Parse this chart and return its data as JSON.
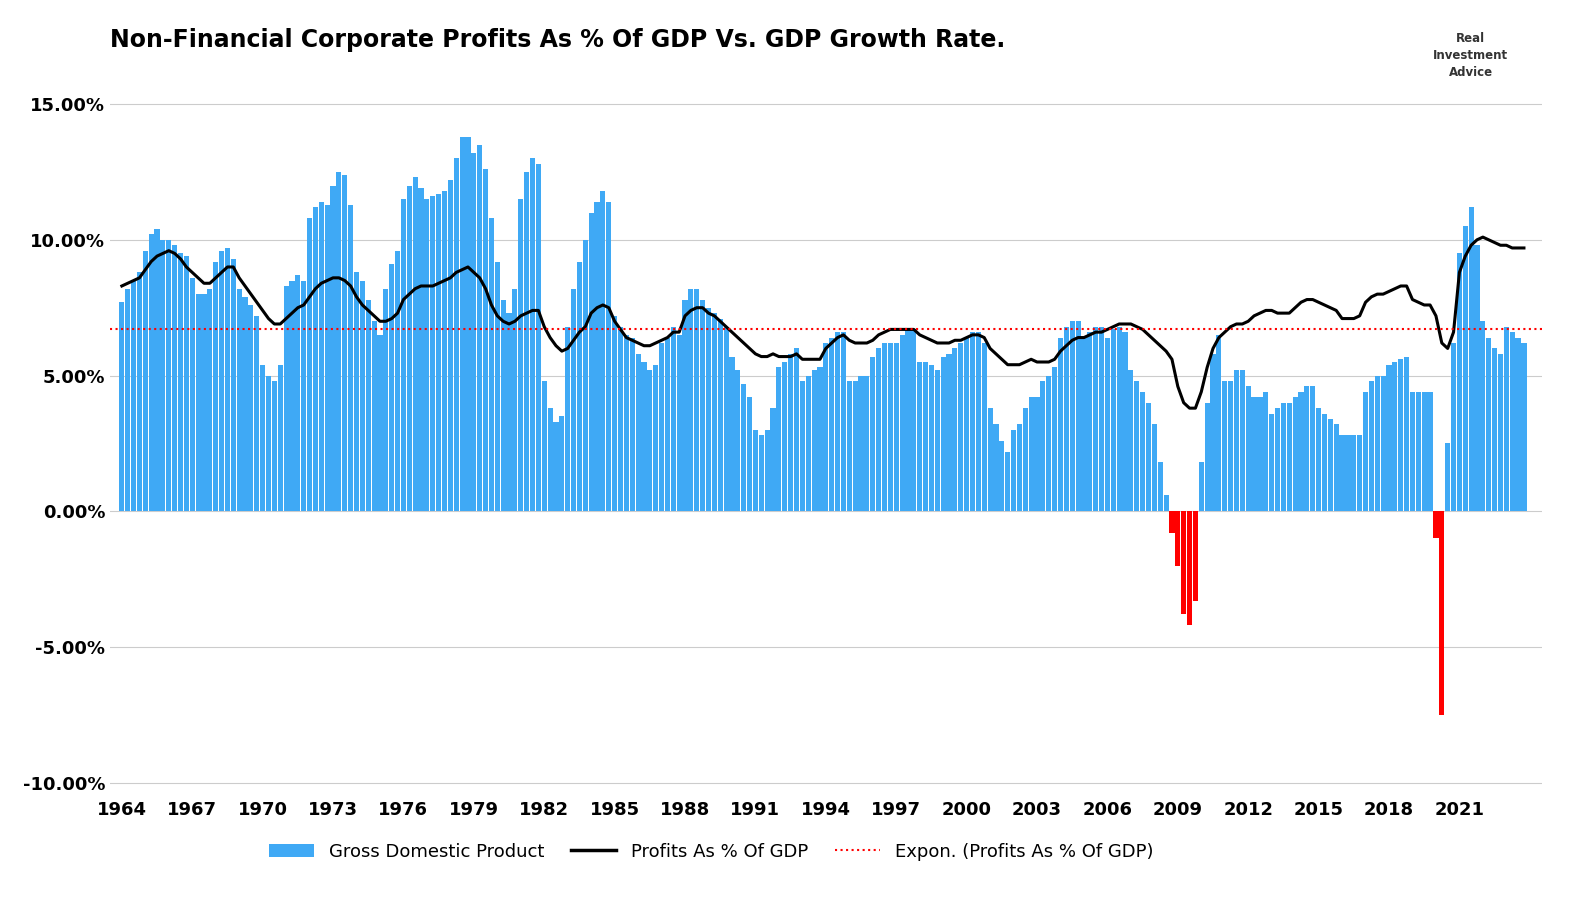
{
  "title": "Non-Financial Corporate Profits As % Of GDP Vs. GDP Growth Rate.",
  "background_color": "#ffffff",
  "title_fontsize": 17,
  "gdp_pos_color": "#3fa9f5",
  "gdp_neg_color": "#ff0000",
  "profits_color": "#000000",
  "expon_color": "#ff0000",
  "expon_value": 0.067,
  "ylim": [
    -0.105,
    0.165
  ],
  "yticks": [
    -0.1,
    -0.05,
    0.0,
    0.05,
    0.1,
    0.15
  ],
  "ytick_labels": [
    "-10.00%",
    "-5.00%",
    "0.00%",
    "5.00%",
    "10.00%",
    "15.00%"
  ],
  "xtick_years": [
    1964,
    1967,
    1970,
    1973,
    1976,
    1979,
    1982,
    1985,
    1988,
    1991,
    1994,
    1997,
    2000,
    2003,
    2006,
    2009,
    2012,
    2015,
    2018,
    2021
  ],
  "legend_labels": [
    "Gross Domestic Product",
    "Profits As % Of GDP",
    "Expon. (Profits As % Of GDP)"
  ],
  "quarters": [
    1964.0,
    1964.25,
    1964.5,
    1964.75,
    1965.0,
    1965.25,
    1965.5,
    1965.75,
    1966.0,
    1966.25,
    1966.5,
    1966.75,
    1967.0,
    1967.25,
    1967.5,
    1967.75,
    1968.0,
    1968.25,
    1968.5,
    1968.75,
    1969.0,
    1969.25,
    1969.5,
    1969.75,
    1970.0,
    1970.25,
    1970.5,
    1970.75,
    1971.0,
    1971.25,
    1971.5,
    1971.75,
    1972.0,
    1972.25,
    1972.5,
    1972.75,
    1973.0,
    1973.25,
    1973.5,
    1973.75,
    1974.0,
    1974.25,
    1974.5,
    1974.75,
    1975.0,
    1975.25,
    1975.5,
    1975.75,
    1976.0,
    1976.25,
    1976.5,
    1976.75,
    1977.0,
    1977.25,
    1977.5,
    1977.75,
    1978.0,
    1978.25,
    1978.5,
    1978.75,
    1979.0,
    1979.25,
    1979.5,
    1979.75,
    1980.0,
    1980.25,
    1980.5,
    1980.75,
    1981.0,
    1981.25,
    1981.5,
    1981.75,
    1982.0,
    1982.25,
    1982.5,
    1982.75,
    1983.0,
    1983.25,
    1983.5,
    1983.75,
    1984.0,
    1984.25,
    1984.5,
    1984.75,
    1985.0,
    1985.25,
    1985.5,
    1985.75,
    1986.0,
    1986.25,
    1986.5,
    1986.75,
    1987.0,
    1987.25,
    1987.5,
    1987.75,
    1988.0,
    1988.25,
    1988.5,
    1988.75,
    1989.0,
    1989.25,
    1989.5,
    1989.75,
    1990.0,
    1990.25,
    1990.5,
    1990.75,
    1991.0,
    1991.25,
    1991.5,
    1991.75,
    1992.0,
    1992.25,
    1992.5,
    1992.75,
    1993.0,
    1993.25,
    1993.5,
    1993.75,
    1994.0,
    1994.25,
    1994.5,
    1994.75,
    1995.0,
    1995.25,
    1995.5,
    1995.75,
    1996.0,
    1996.25,
    1996.5,
    1996.75,
    1997.0,
    1997.25,
    1997.5,
    1997.75,
    1998.0,
    1998.25,
    1998.5,
    1998.75,
    1999.0,
    1999.25,
    1999.5,
    1999.75,
    2000.0,
    2000.25,
    2000.5,
    2000.75,
    2001.0,
    2001.25,
    2001.5,
    2001.75,
    2002.0,
    2002.25,
    2002.5,
    2002.75,
    2003.0,
    2003.25,
    2003.5,
    2003.75,
    2004.0,
    2004.25,
    2004.5,
    2004.75,
    2005.0,
    2005.25,
    2005.5,
    2005.75,
    2006.0,
    2006.25,
    2006.5,
    2006.75,
    2007.0,
    2007.25,
    2007.5,
    2007.75,
    2008.0,
    2008.25,
    2008.5,
    2008.75,
    2009.0,
    2009.25,
    2009.5,
    2009.75,
    2010.0,
    2010.25,
    2010.5,
    2010.75,
    2011.0,
    2011.25,
    2011.5,
    2011.75,
    2012.0,
    2012.25,
    2012.5,
    2012.75,
    2013.0,
    2013.25,
    2013.5,
    2013.75,
    2014.0,
    2014.25,
    2014.5,
    2014.75,
    2015.0,
    2015.25,
    2015.5,
    2015.75,
    2016.0,
    2016.25,
    2016.5,
    2016.75,
    2017.0,
    2017.25,
    2017.5,
    2017.75,
    2018.0,
    2018.25,
    2018.5,
    2018.75,
    2019.0,
    2019.25,
    2019.5,
    2019.75,
    2020.0,
    2020.25,
    2020.5,
    2020.75,
    2021.0,
    2021.25,
    2021.5,
    2021.75,
    2022.0,
    2022.25,
    2022.5,
    2022.75,
    2023.0,
    2023.25,
    2023.5,
    2023.75
  ],
  "gdp_growth_q": [
    0.077,
    0.082,
    0.085,
    0.088,
    0.096,
    0.102,
    0.104,
    0.1,
    0.1,
    0.098,
    0.095,
    0.094,
    0.086,
    0.08,
    0.08,
    0.082,
    0.092,
    0.096,
    0.097,
    0.093,
    0.082,
    0.079,
    0.076,
    0.072,
    0.054,
    0.05,
    0.048,
    0.054,
    0.083,
    0.085,
    0.087,
    0.085,
    0.108,
    0.112,
    0.114,
    0.113,
    0.12,
    0.125,
    0.124,
    0.113,
    0.088,
    0.085,
    0.078,
    0.07,
    0.065,
    0.082,
    0.091,
    0.096,
    0.115,
    0.12,
    0.123,
    0.119,
    0.115,
    0.116,
    0.117,
    0.118,
    0.122,
    0.13,
    0.138,
    0.138,
    0.132,
    0.135,
    0.126,
    0.108,
    0.092,
    0.078,
    0.073,
    0.082,
    0.115,
    0.125,
    0.13,
    0.128,
    0.048,
    0.038,
    0.033,
    0.035,
    0.068,
    0.082,
    0.092,
    0.1,
    0.11,
    0.114,
    0.118,
    0.114,
    0.072,
    0.068,
    0.065,
    0.064,
    0.058,
    0.055,
    0.052,
    0.054,
    0.062,
    0.064,
    0.068,
    0.065,
    0.078,
    0.082,
    0.082,
    0.078,
    0.075,
    0.073,
    0.071,
    0.068,
    0.057,
    0.052,
    0.047,
    0.042,
    0.03,
    0.028,
    0.03,
    0.038,
    0.053,
    0.055,
    0.058,
    0.06,
    0.048,
    0.05,
    0.052,
    0.053,
    0.062,
    0.064,
    0.066,
    0.066,
    0.048,
    0.048,
    0.05,
    0.05,
    0.057,
    0.06,
    0.062,
    0.062,
    0.062,
    0.065,
    0.067,
    0.067,
    0.055,
    0.055,
    0.054,
    0.052,
    0.057,
    0.058,
    0.06,
    0.062,
    0.064,
    0.066,
    0.066,
    0.062,
    0.038,
    0.032,
    0.026,
    0.022,
    0.03,
    0.032,
    0.038,
    0.042,
    0.042,
    0.048,
    0.05,
    0.053,
    0.064,
    0.068,
    0.07,
    0.07,
    0.064,
    0.066,
    0.068,
    0.068,
    0.064,
    0.067,
    0.068,
    0.066,
    0.052,
    0.048,
    0.044,
    0.04,
    0.032,
    0.018,
    0.006,
    -0.008,
    -0.02,
    -0.038,
    -0.042,
    -0.033,
    0.018,
    0.04,
    0.058,
    0.065,
    0.048,
    0.048,
    0.052,
    0.052,
    0.046,
    0.042,
    0.042,
    0.044,
    0.036,
    0.038,
    0.04,
    0.04,
    0.042,
    0.044,
    0.046,
    0.046,
    0.038,
    0.036,
    0.034,
    0.032,
    0.028,
    0.028,
    0.028,
    0.028,
    0.044,
    0.048,
    0.05,
    0.05,
    0.054,
    0.055,
    0.056,
    0.057,
    0.044,
    0.044,
    0.044,
    0.044,
    -0.01,
    -0.075,
    0.025,
    0.062,
    0.095,
    0.105,
    0.112,
    0.098,
    0.07,
    0.064,
    0.06,
    0.058,
    0.068,
    0.066,
    0.064,
    0.062
  ],
  "profits_pct_q": [
    0.083,
    0.084,
    0.085,
    0.086,
    0.089,
    0.092,
    0.094,
    0.095,
    0.096,
    0.095,
    0.093,
    0.09,
    0.088,
    0.086,
    0.084,
    0.084,
    0.086,
    0.088,
    0.09,
    0.09,
    0.086,
    0.083,
    0.08,
    0.077,
    0.074,
    0.071,
    0.069,
    0.069,
    0.071,
    0.073,
    0.075,
    0.076,
    0.079,
    0.082,
    0.084,
    0.085,
    0.086,
    0.086,
    0.085,
    0.083,
    0.079,
    0.076,
    0.074,
    0.072,
    0.07,
    0.07,
    0.071,
    0.073,
    0.078,
    0.08,
    0.082,
    0.083,
    0.083,
    0.083,
    0.084,
    0.085,
    0.086,
    0.088,
    0.089,
    0.09,
    0.088,
    0.086,
    0.082,
    0.076,
    0.072,
    0.07,
    0.069,
    0.07,
    0.072,
    0.073,
    0.074,
    0.074,
    0.068,
    0.064,
    0.061,
    0.059,
    0.06,
    0.063,
    0.066,
    0.068,
    0.073,
    0.075,
    0.076,
    0.075,
    0.07,
    0.067,
    0.064,
    0.063,
    0.062,
    0.061,
    0.061,
    0.062,
    0.063,
    0.064,
    0.066,
    0.066,
    0.072,
    0.074,
    0.075,
    0.075,
    0.073,
    0.072,
    0.07,
    0.068,
    0.066,
    0.064,
    0.062,
    0.06,
    0.058,
    0.057,
    0.057,
    0.058,
    0.057,
    0.057,
    0.057,
    0.058,
    0.056,
    0.056,
    0.056,
    0.056,
    0.06,
    0.062,
    0.064,
    0.065,
    0.063,
    0.062,
    0.062,
    0.062,
    0.063,
    0.065,
    0.066,
    0.067,
    0.067,
    0.067,
    0.067,
    0.067,
    0.065,
    0.064,
    0.063,
    0.062,
    0.062,
    0.062,
    0.063,
    0.063,
    0.064,
    0.065,
    0.065,
    0.064,
    0.06,
    0.058,
    0.056,
    0.054,
    0.054,
    0.054,
    0.055,
    0.056,
    0.055,
    0.055,
    0.055,
    0.056,
    0.059,
    0.061,
    0.063,
    0.064,
    0.064,
    0.065,
    0.066,
    0.066,
    0.067,
    0.068,
    0.069,
    0.069,
    0.069,
    0.068,
    0.067,
    0.065,
    0.063,
    0.061,
    0.059,
    0.056,
    0.046,
    0.04,
    0.038,
    0.038,
    0.044,
    0.053,
    0.06,
    0.064,
    0.066,
    0.068,
    0.069,
    0.069,
    0.07,
    0.072,
    0.073,
    0.074,
    0.074,
    0.073,
    0.073,
    0.073,
    0.075,
    0.077,
    0.078,
    0.078,
    0.077,
    0.076,
    0.075,
    0.074,
    0.071,
    0.071,
    0.071,
    0.072,
    0.077,
    0.079,
    0.08,
    0.08,
    0.081,
    0.082,
    0.083,
    0.083,
    0.078,
    0.077,
    0.076,
    0.076,
    0.072,
    0.062,
    0.06,
    0.066,
    0.088,
    0.094,
    0.098,
    0.1,
    0.101,
    0.1,
    0.099,
    0.098,
    0.098,
    0.097,
    0.097,
    0.097
  ]
}
